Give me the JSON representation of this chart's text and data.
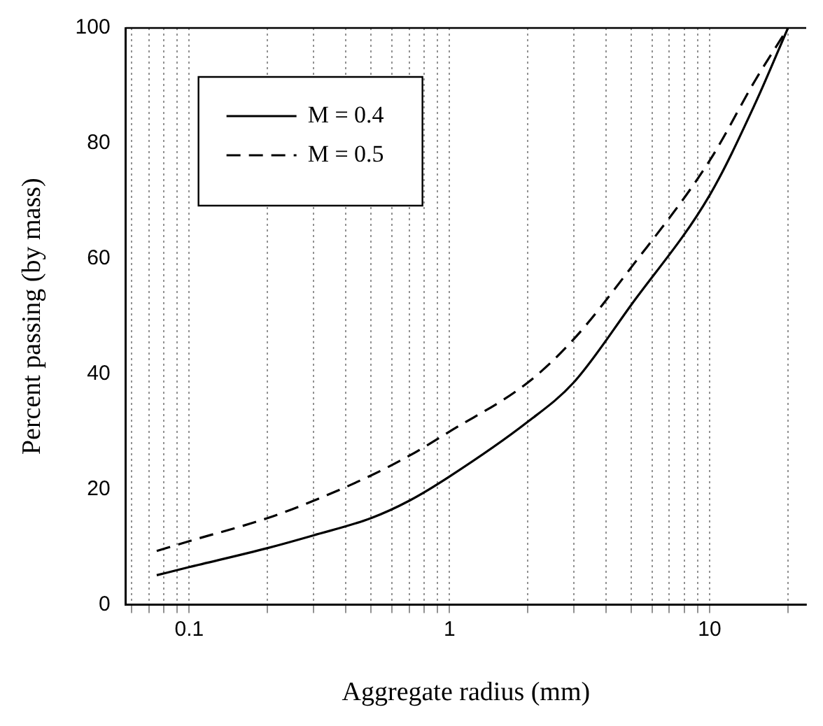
{
  "chart_data": {
    "type": "line",
    "xlabel": "Aggregate radius (mm)",
    "ylabel": "Percent passing (by mass)",
    "log": "x",
    "xlim": [
      0.057,
      23.5
    ],
    "ylim": [
      0,
      100
    ],
    "xticks": [
      {
        "value": 0.06,
        "label": null
      },
      {
        "value": 0.07,
        "label": null
      },
      {
        "value": 0.08,
        "label": null
      },
      {
        "value": 0.09,
        "label": null
      },
      0.1,
      {
        "value": 0.2,
        "label": null
      },
      {
        "value": 0.3,
        "label": null
      },
      {
        "value": 0.4,
        "label": null
      },
      {
        "value": 0.5,
        "label": null
      },
      {
        "value": 0.6,
        "label": null
      },
      {
        "value": 0.7,
        "label": null
      },
      {
        "value": 0.8,
        "label": null
      },
      {
        "value": 0.9,
        "label": null
      },
      1,
      {
        "value": 2,
        "label": null
      },
      {
        "value": 3,
        "label": null
      },
      {
        "value": 4,
        "label": null
      },
      {
        "value": 5,
        "label": null
      },
      {
        "value": 6,
        "label": null
      },
      {
        "value": 7,
        "label": null
      },
      {
        "value": 8,
        "label": null
      },
      {
        "value": 9,
        "label": null
      },
      10,
      {
        "value": 20,
        "label": null
      }
    ],
    "yticks": [
      0,
      20,
      40,
      60,
      80,
      100
    ],
    "grid": "x",
    "legend": "top left",
    "marker": "none",
    "x": [
      0.075,
      0.1,
      0.2,
      0.3,
      0.5,
      0.7,
      1,
      2,
      3,
      5,
      10,
      15,
      20
    ],
    "series": [
      {
        "name": "M = 0.4",
        "color": "#000000",
        "line_style": "solid",
        "values": [
          5.1,
          6.5,
          9.8,
          12,
          15,
          18,
          22.2,
          31.7,
          38.5,
          52,
          71,
          87,
          100
        ]
      },
      {
        "name": "M = 0.5",
        "color": "#000000",
        "line_style": "dashed",
        "values": [
          9.3,
          11,
          15,
          18,
          22.4,
          25.8,
          30,
          38.5,
          46,
          58.5,
          77,
          91,
          100
        ]
      }
    ]
  }
}
